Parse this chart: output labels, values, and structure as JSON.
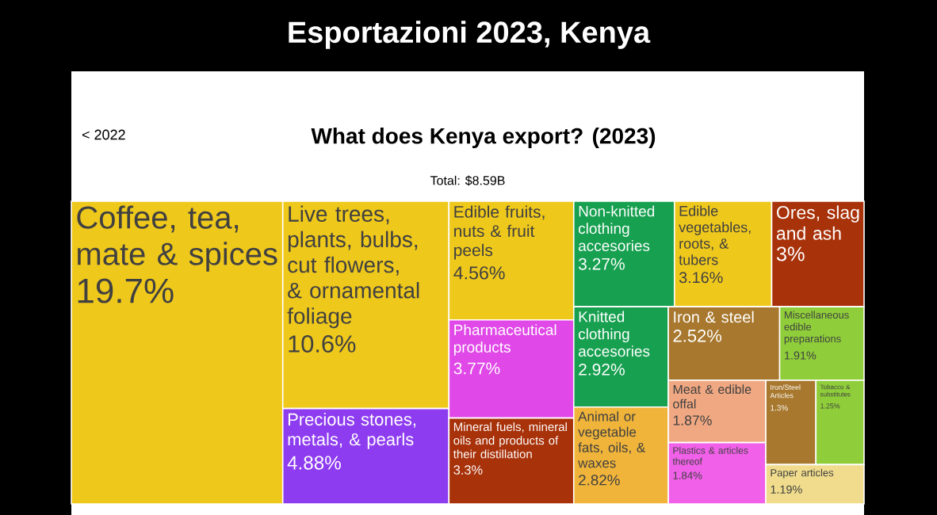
{
  "chart_data": {
    "type": "other",
    "title": "Esportazioni 2023, Kenya",
    "subtitle": "What does Kenya export? (2023)",
    "annotations": [
      "< 2022",
      "Total: $8.59B"
    ],
    "categories": [
      "Coffee, tea, mate & spices",
      "Live trees, plants, bulbs, cut flowers, & ornamental foliage",
      "Precious stones, metals, & pearls",
      "Edible fruits, nuts & fruit peels",
      "Pharmaceutical products",
      "Mineral fuels, mineral oils and products of their distillation",
      "Non-knitted clothing accesories",
      "Edible vegetables, roots, & tubers",
      "Ores, slag and ash",
      "Knitted clothing accesories",
      "Animal or vegetable fats, oils, & waxes",
      "Iron & steel",
      "Miscellaneous edible preparations",
      "Meat & edible offal",
      "Plastics & articles thereof",
      "Iron/Steel Articles",
      "Tobacco & substitutes",
      "Paper articles"
    ],
    "values": [
      19.7,
      10.6,
      4.88,
      4.56,
      3.77,
      3.3,
      3.27,
      3.16,
      3,
      2.92,
      2.82,
      2.52,
      1.91,
      1.87,
      1.84,
      1.3,
      1.25,
      1.19
    ],
    "value_labels": [
      "19.7%",
      "10.6%",
      "4.88%",
      "4.56%",
      "3.77%",
      "3.3%",
      "3.27%",
      "3.16%",
      "3%",
      "2.92%",
      "2.82%",
      "2.52%",
      "1.91%",
      "1.87%",
      "1.84%",
      "1.3%",
      "1.25%",
      "1.19%"
    ],
    "colors": [
      "#efc81c",
      "#efc81c",
      "#8e3cf0",
      "#efc81c",
      "#e048e8",
      "#a8320a",
      "#17a050",
      "#efc81c",
      "#a8320a",
      "#17a050",
      "#f0b43a",
      "#a8782e",
      "#8fce3a",
      "#f0a882",
      "#f060e8",
      "#a8782e",
      "#8fce3a",
      "#f0dc8c"
    ]
  }
}
